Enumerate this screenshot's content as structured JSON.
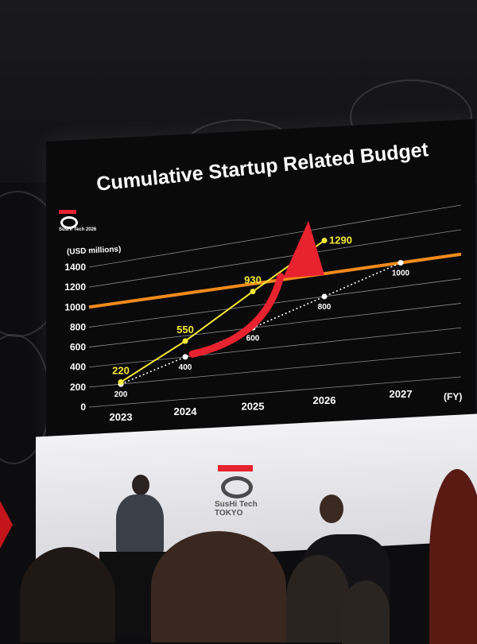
{
  "slide": {
    "logo_text": "SusHi Tech 2026",
    "brand_text_1": "SusHi Tech",
    "brand_text_2": "TOKYO"
  },
  "chart_data": {
    "type": "line",
    "title": "Cumulative Startup Related Budget",
    "ylabel": "(USD millions)",
    "xlabel": "(FY)",
    "categories": [
      "2023",
      "2024",
      "2025",
      "2026",
      "2027"
    ],
    "ylim": [
      0,
      1400
    ],
    "yticks": [
      0,
      200,
      400,
      600,
      800,
      1000,
      1200,
      1400
    ],
    "grid": true,
    "series": [
      {
        "values": [
          220,
          550,
          930,
          1290,
          null
        ],
        "labels": [
          "220",
          "550",
          "930",
          "1290",
          ""
        ],
        "color": "#f6ea37",
        "style": "solid"
      },
      {
        "values": [
          200,
          400,
          600,
          800,
          1000
        ],
        "labels": [
          "200",
          "400",
          "600",
          "800",
          "1000"
        ],
        "color": "#ffffff",
        "style": "dotted"
      }
    ],
    "reference_line": {
      "value": 1000,
      "color": "#f08a1c"
    },
    "arrow_color": "#e8222e"
  }
}
